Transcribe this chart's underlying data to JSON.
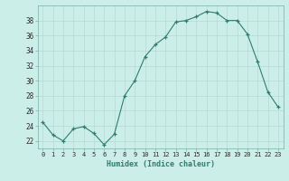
{
  "x": [
    0,
    1,
    2,
    3,
    4,
    5,
    6,
    7,
    8,
    9,
    10,
    11,
    12,
    13,
    14,
    15,
    16,
    17,
    18,
    19,
    20,
    21,
    22,
    23
  ],
  "y": [
    24.5,
    22.8,
    22.0,
    23.6,
    23.9,
    23.0,
    21.5,
    22.9,
    28.0,
    30.0,
    33.2,
    34.8,
    35.8,
    37.8,
    38.0,
    38.5,
    39.2,
    39.0,
    38.0,
    38.0,
    36.2,
    32.5,
    28.5,
    26.5
  ],
  "line_color": "#2e7d6e",
  "bg_color": "#cceee8",
  "grid_color": "#b8d8d4",
  "xlabel": "Humidex (Indice chaleur)",
  "ylabel": "",
  "ylim": [
    21.0,
    40.0
  ],
  "yticks": [
    22,
    24,
    26,
    28,
    30,
    32,
    34,
    36,
    38
  ],
  "xlim": [
    -0.5,
    23.5
  ],
  "xticks": [
    0,
    1,
    2,
    3,
    4,
    5,
    6,
    7,
    8,
    9,
    10,
    11,
    12,
    13,
    14,
    15,
    16,
    17,
    18,
    19,
    20,
    21,
    22,
    23
  ]
}
